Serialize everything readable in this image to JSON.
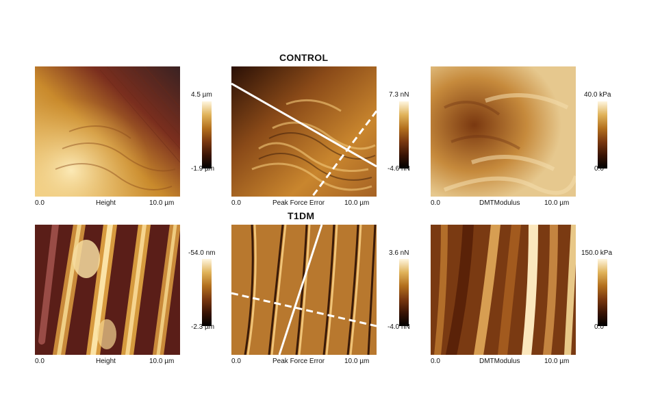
{
  "rows": [
    {
      "title": "CONTROL",
      "panels": [
        {
          "axis_start": "0.0",
          "channel": "Height",
          "axis_end": "10.0 µm",
          "scale_max": "4.5 µm",
          "scale_min": "-1.9 µm"
        },
        {
          "axis_start": "0.0",
          "channel": "Peak Force Error",
          "axis_end": "10.0 µm",
          "scale_max": "7.3 nN",
          "scale_min": "-4.6 nN"
        },
        {
          "axis_start": "0.0",
          "channel": "DMTModulus",
          "axis_end": "10.0 µm",
          "scale_max": "40.0 kPa",
          "scale_min": "0.0"
        }
      ]
    },
    {
      "title": "T1DM",
      "panels": [
        {
          "axis_start": "0.0",
          "channel": "Height",
          "axis_end": "10.0 µm",
          "scale_max": "-54.0 nm",
          "scale_min": "-2.3 µm"
        },
        {
          "axis_start": "0.0",
          "channel": "Peak Force Error",
          "axis_end": "10.0 µm",
          "scale_max": "3.6 nN",
          "scale_min": "-4.0 nN"
        },
        {
          "axis_start": "0.0",
          "channel": "DMTModulus",
          "axis_end": "10.0 µm",
          "scale_max": "150.0 kPa",
          "scale_min": "0.0"
        }
      ]
    }
  ],
  "colors": {
    "colormap": [
      "#000000",
      "#3a1405",
      "#7a3810",
      "#b3701e",
      "#e0b35a",
      "#fff6e0"
    ],
    "line": "#ffffff"
  }
}
